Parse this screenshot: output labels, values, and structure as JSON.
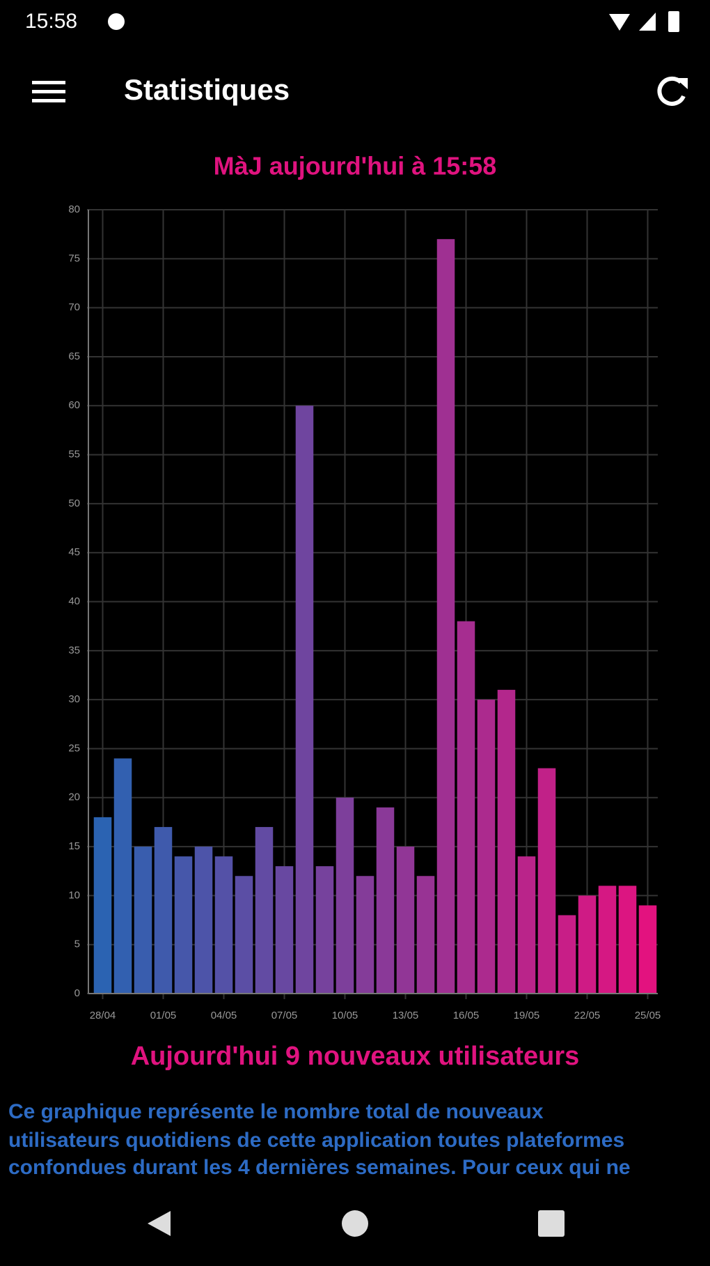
{
  "status_bar": {
    "time": "15:58"
  },
  "app_bar": {
    "title": "Statistiques"
  },
  "chart_data": {
    "type": "bar",
    "title": "MàJ aujourd'hui à 15:58",
    "categories": [
      "28/04",
      null,
      null,
      "01/05",
      null,
      null,
      "04/05",
      null,
      null,
      "07/05",
      null,
      null,
      "10/05",
      null,
      null,
      "13/05",
      null,
      null,
      "16/05",
      null,
      null,
      "19/05",
      null,
      null,
      "22/05",
      null,
      null,
      "25/05"
    ],
    "values": [
      18,
      24,
      15,
      17,
      14,
      15,
      14,
      12,
      17,
      13,
      60,
      13,
      20,
      12,
      19,
      15,
      12,
      77,
      38,
      30,
      31,
      14,
      23,
      8,
      10,
      11,
      11,
      9
    ],
    "gradient": [
      "#2b63b2",
      "#e3127f"
    ],
    "ylim": [
      0,
      80
    ],
    "yticks": [
      0,
      5,
      10,
      15,
      20,
      25,
      30,
      35,
      40,
      45,
      50,
      55,
      60,
      65,
      70,
      75,
      80
    ],
    "grid": true
  },
  "summary": "Aujourd'hui 9 nouveaux utilisateurs",
  "description_lines": [
    "Ce graphique représente le nombre total de nouveaux",
    "utilisateurs quotidiens de cette application toutes plateformes",
    "confondues durant les 4 dernières semaines. Pour ceux qui ne"
  ]
}
